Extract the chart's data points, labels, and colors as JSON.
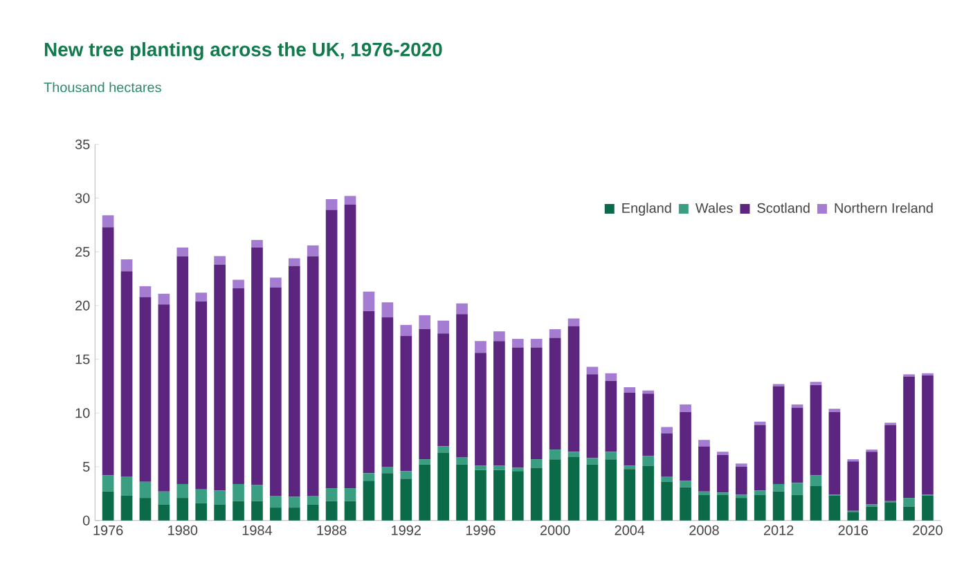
{
  "chart_data": {
    "type": "bar",
    "stacked": true,
    "title": "New tree planting across the UK, 1976-2020",
    "subtitle": "Thousand hectares",
    "categories": [
      "1976",
      null,
      null,
      null,
      "1980",
      null,
      null,
      null,
      "1984",
      null,
      null,
      null,
      "1988",
      null,
      null,
      null,
      "1992",
      null,
      null,
      null,
      "1996",
      null,
      null,
      null,
      "2000",
      null,
      null,
      null,
      "2004",
      null,
      null,
      null,
      "2008",
      null,
      null,
      null,
      "2012",
      null,
      null,
      null,
      "2016",
      null,
      null,
      null,
      "2020"
    ],
    "series": [
      {
        "name": "England",
        "color": "#0b6b48",
        "values": [
          2.7,
          2.3,
          2.1,
          1.5,
          2.1,
          1.6,
          1.5,
          1.8,
          1.8,
          1.2,
          1.2,
          1.5,
          1.8,
          1.8,
          3.7,
          4.4,
          3.9,
          5.2,
          6.3,
          5.2,
          4.7,
          4.7,
          4.6,
          4.9,
          5.7,
          5.9,
          5.2,
          5.7,
          4.8,
          5.1,
          3.6,
          3.1,
          2.4,
          2.4,
          2.1,
          2.4,
          2.7,
          2.4,
          3.2,
          2.3,
          0.8,
          1.3,
          1.7,
          1.3,
          2.3
        ]
      },
      {
        "name": "Wales",
        "color": "#3a9e82",
        "values": [
          1.5,
          1.8,
          1.5,
          1.2,
          1.3,
          1.3,
          1.3,
          1.6,
          1.5,
          1.1,
          1.0,
          0.8,
          1.2,
          1.2,
          0.7,
          0.6,
          0.7,
          0.5,
          0.6,
          0.7,
          0.4,
          0.4,
          0.3,
          0.8,
          0.9,
          0.5,
          0.6,
          0.7,
          0.3,
          0.9,
          0.5,
          0.6,
          0.3,
          0.2,
          0.3,
          0.4,
          0.7,
          1.1,
          1.0,
          0.1,
          0.1,
          0.2,
          0.1,
          0.8,
          0.1
        ]
      },
      {
        "name": "Scotland",
        "color": "#5c2680",
        "values": [
          23.1,
          19.1,
          17.2,
          17.4,
          21.2,
          17.5,
          21.0,
          18.2,
          22.1,
          19.4,
          21.5,
          22.3,
          25.9,
          26.4,
          15.1,
          13.9,
          12.6,
          12.1,
          10.5,
          13.3,
          10.5,
          11.6,
          11.2,
          10.4,
          10.4,
          11.7,
          7.8,
          6.6,
          6.8,
          5.8,
          4.0,
          6.4,
          4.2,
          3.5,
          2.6,
          6.1,
          9.1,
          7.0,
          8.4,
          7.7,
          4.6,
          4.9,
          7.1,
          11.3,
          11.1
        ]
      },
      {
        "name": "Northern Ireland",
        "color": "#a47dd2",
        "values": [
          1.1,
          1.1,
          1.0,
          1.0,
          0.8,
          0.8,
          0.8,
          0.8,
          0.7,
          0.9,
          0.7,
          1.0,
          1.0,
          0.8,
          1.8,
          1.4,
          1.0,
          1.3,
          1.2,
          1.0,
          1.1,
          0.9,
          0.8,
          0.8,
          0.8,
          0.7,
          0.7,
          0.7,
          0.5,
          0.3,
          0.6,
          0.7,
          0.6,
          0.3,
          0.3,
          0.3,
          0.2,
          0.3,
          0.3,
          0.3,
          0.2,
          0.2,
          0.2,
          0.2,
          0.2
        ]
      }
    ],
    "ylim": [
      0,
      35
    ],
    "yticks": [
      0,
      5,
      10,
      15,
      20,
      25,
      30,
      35
    ],
    "legend": "top right"
  }
}
